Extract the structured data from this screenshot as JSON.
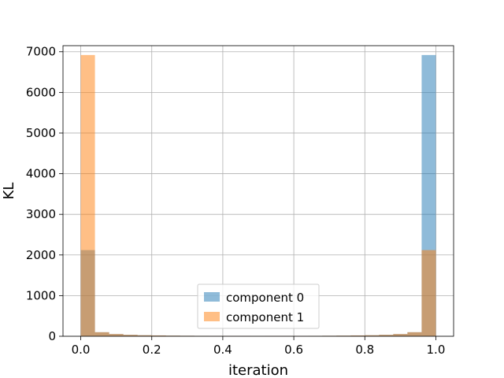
{
  "chart_data": {
    "type": "bar",
    "xlabel": "iteration",
    "ylabel": "KL",
    "xlim": [
      -0.05,
      1.05
    ],
    "ylim": [
      0,
      7150
    ],
    "xticks": [
      0.0,
      0.2,
      0.4,
      0.6,
      0.8,
      1.0
    ],
    "xtick_labels": [
      "0.0",
      "0.2",
      "0.4",
      "0.6",
      "0.8",
      "1.0"
    ],
    "yticks": [
      0,
      1000,
      2000,
      3000,
      4000,
      5000,
      6000,
      7000
    ],
    "ytick_labels": [
      "0",
      "1000",
      "2000",
      "3000",
      "4000",
      "5000",
      "6000",
      "7000"
    ],
    "grid": true,
    "legend_position": "lower center",
    "bin_edges": [
      0.0,
      0.04,
      0.08,
      0.12,
      0.16,
      0.2,
      0.24,
      0.28,
      0.32,
      0.36,
      0.4,
      0.44,
      0.48,
      0.52,
      0.56,
      0.6,
      0.64,
      0.68,
      0.72,
      0.76,
      0.8,
      0.84,
      0.88,
      0.92,
      0.96,
      1.0
    ],
    "series": [
      {
        "name": "component 0",
        "color": "#1f77b4",
        "alpha": 0.5,
        "values": [
          2120,
          100,
          55,
          35,
          25,
          20,
          15,
          12,
          10,
          8,
          8,
          8,
          6,
          8,
          8,
          8,
          10,
          12,
          15,
          20,
          25,
          35,
          55,
          100,
          6920
        ]
      },
      {
        "name": "component 1",
        "color": "#ff7f0e",
        "alpha": 0.5,
        "values": [
          6920,
          100,
          55,
          35,
          25,
          20,
          15,
          12,
          10,
          8,
          8,
          8,
          6,
          8,
          8,
          8,
          10,
          12,
          15,
          20,
          25,
          35,
          55,
          100,
          2120
        ]
      }
    ]
  }
}
